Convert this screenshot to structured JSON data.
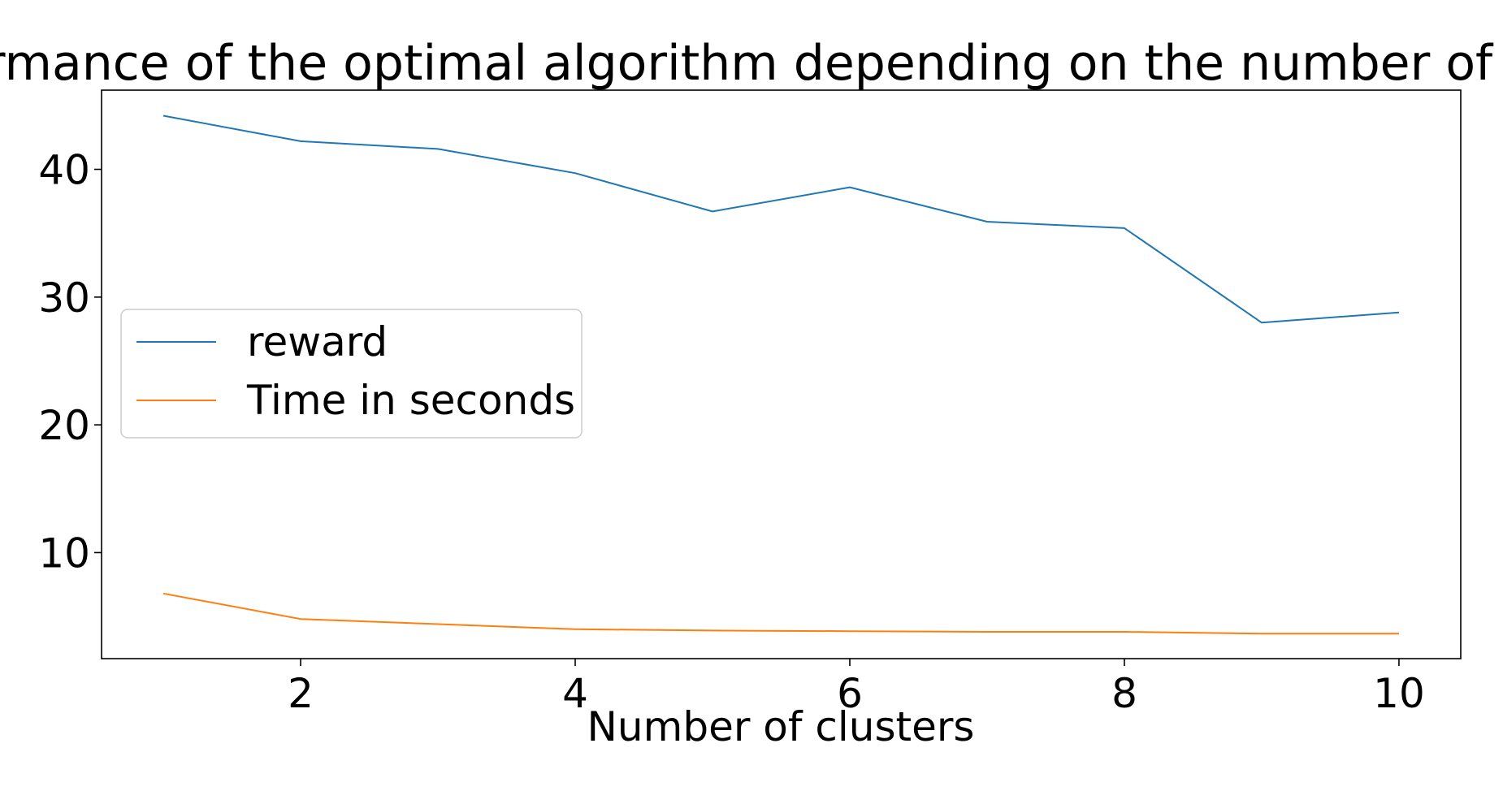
{
  "chart_data": {
    "type": "line",
    "title": "Performance of the optimal algorithm depending on the number of clusters",
    "xlabel": "Number of clusters",
    "ylabel": "",
    "x": [
      1,
      2,
      3,
      4,
      5,
      6,
      7,
      8,
      9,
      10
    ],
    "xlim": [
      0.55,
      10.45
    ],
    "ylim": [
      1.7,
      46.2
    ],
    "xticks": [
      2,
      4,
      6,
      8,
      10
    ],
    "yticks": [
      10,
      20,
      30,
      40
    ],
    "grid": false,
    "legend_position": "center-left",
    "series": [
      {
        "name": "reward",
        "color": "#1f77b4",
        "values": [
          44.2,
          42.2,
          41.6,
          39.7,
          36.7,
          38.6,
          35.9,
          35.4,
          28.0,
          28.8
        ]
      },
      {
        "name": "Time in seconds",
        "color": "#ff7f0e",
        "values": [
          6.8,
          4.8,
          4.4,
          4.0,
          3.9,
          3.85,
          3.8,
          3.8,
          3.65,
          3.65
        ]
      }
    ]
  }
}
